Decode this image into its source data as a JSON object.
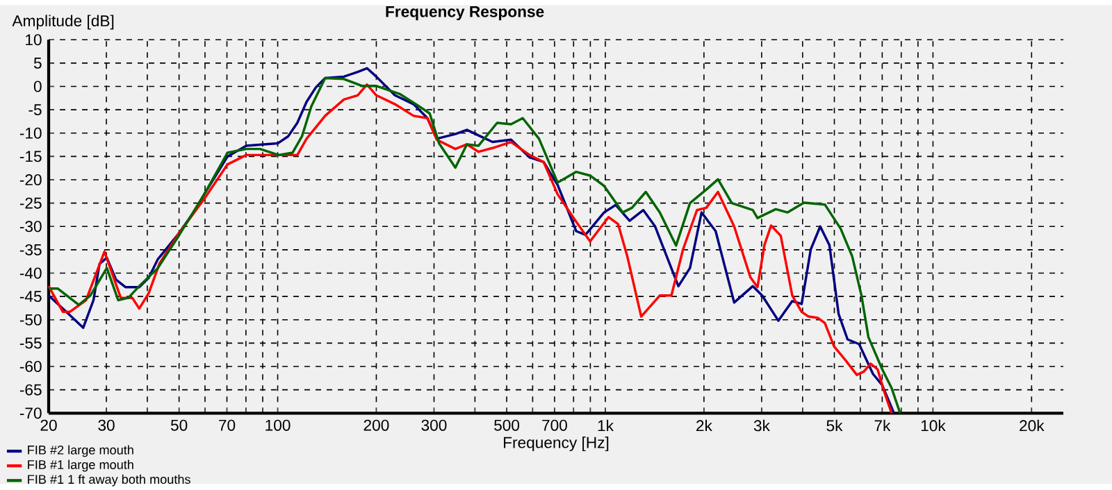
{
  "chart_data": {
    "type": "line",
    "title": "Frequency Response",
    "xlabel": "Frequency [Hz]",
    "ylabel": "Amplitude [dB]",
    "log": "x",
    "grid": true,
    "legend": "bottom left",
    "marker": "none",
    "line_style": "solid",
    "xlim": [
      20,
      25000
    ],
    "ylim": [
      -70,
      10
    ],
    "xticks": [
      20,
      30,
      {
        "value": 40,
        "label": null
      },
      50,
      {
        "value": 60,
        "label": null
      },
      70,
      {
        "value": 80,
        "label": null
      },
      {
        "value": 90,
        "label": null
      },
      100,
      200,
      300,
      {
        "value": 400,
        "label": null
      },
      500,
      {
        "value": 600,
        "label": null
      },
      700,
      {
        "value": 800,
        "label": null
      },
      {
        "value": 900,
        "label": null
      },
      {
        "value": 1000,
        "label": "1k"
      },
      {
        "value": 2000,
        "label": "2k"
      },
      {
        "value": 3000,
        "label": "3k"
      },
      {
        "value": 4000,
        "label": null
      },
      {
        "value": 5000,
        "label": "5k"
      },
      {
        "value": 6000,
        "label": null
      },
      {
        "value": 7000,
        "label": "7k"
      },
      {
        "value": 8000,
        "label": null
      },
      {
        "value": 9000,
        "label": null
      },
      {
        "value": 10000,
        "label": "10k"
      },
      {
        "value": 20000,
        "label": "20k"
      }
    ],
    "yticks": [
      -70,
      -65,
      -60,
      -55,
      -50,
      -45,
      -40,
      -35,
      -30,
      -25,
      -20,
      -15,
      -10,
      -5,
      0,
      5,
      10
    ],
    "series": [
      {
        "name": "FIB #2 large mouth",
        "color": "#000080",
        "x": [
          20,
          22.4,
          25.5,
          27.4,
          28.6,
          30.1,
          32.1,
          34.3,
          37.8,
          40.4,
          43.1,
          49.9,
          56,
          59.8,
          70.3,
          80.2,
          100,
          107.6,
          114.8,
          122.5,
          130.8,
          139.6,
          159.2,
          175.5,
          187.3,
          200,
          227.9,
          259.8,
          286.4,
          305.8,
          348.6,
          378,
          410.3,
          452.6,
          515.5,
          587.5,
          648.3,
          715,
          814.8,
          869.8,
          990.9,
          1076,
          1186,
          1306,
          1419,
          1671,
          1813,
          1967,
          2171,
          2473,
          2818,
          3010,
          3375,
          3720,
          3974,
          4237,
          4528,
          4830,
          5154,
          5487,
          5951,
          6560,
          7000,
          7600
        ],
        "values": [
          -44.8,
          -48,
          -51.7,
          -45.8,
          -38,
          -36.7,
          -41.4,
          -43,
          -43,
          -41,
          -37,
          -31.5,
          -26.5,
          -23,
          -15,
          -12.7,
          -12.2,
          -10.7,
          -7.8,
          -3.3,
          -0.2,
          1.8,
          2.1,
          3.1,
          3.9,
          2.1,
          -1.9,
          -3.8,
          -6.8,
          -11.2,
          -10.2,
          -9.3,
          -10.5,
          -11.9,
          -11.4,
          -15.2,
          -16.2,
          -21.1,
          -31,
          -31.8,
          -27,
          -25.4,
          -28.8,
          -26.5,
          -30,
          -42.8,
          -38.9,
          -27,
          -31,
          -46.3,
          -42.8,
          -44.8,
          -50.2,
          -46,
          -46.6,
          -34.9,
          -30,
          -34,
          -48.8,
          -54.2,
          -55.2,
          -61.6,
          -64,
          -70
        ]
      },
      {
        "name": "FIB #1 large mouth",
        "color": "#ff0000",
        "x": [
          20,
          22.1,
          23.2,
          26,
          29.6,
          33.2,
          36,
          37.8,
          40.4,
          43.6,
          49.9,
          59.8,
          70.3,
          80.2,
          100,
          114.8,
          122.5,
          139.6,
          159.2,
          175.5,
          187.3,
          200,
          227.9,
          259.8,
          286.4,
          305.8,
          348.6,
          378,
          410.3,
          452.6,
          515.5,
          587.5,
          648.3,
          715,
          814.8,
          898.6,
          1023,
          1094,
          1167,
          1287,
          1466,
          1591,
          1727,
          1904,
          2033,
          2207,
          2473,
          2772,
          2913,
          3059,
          3206,
          3431,
          3720,
          3974,
          4169,
          4454,
          4677,
          4990,
          5400,
          5855,
          6150,
          6454,
          6777,
          7115,
          7477
        ],
        "values": [
          -42.8,
          -48.3,
          -48.3,
          -45.8,
          -35.4,
          -45.3,
          -45.3,
          -47.6,
          -44.3,
          -37.9,
          -31.5,
          -24,
          -16.7,
          -14.7,
          -14.7,
          -14.7,
          -11.2,
          -6.3,
          -2.8,
          -1.9,
          0.4,
          -1.9,
          -3.8,
          -6.3,
          -6.8,
          -11.4,
          -13.4,
          -12.4,
          -14,
          -13.2,
          -11.9,
          -14.7,
          -16.2,
          -23.1,
          -29,
          -33.2,
          -28,
          -29.5,
          -36.4,
          -49.3,
          -44.8,
          -44.8,
          -34.9,
          -26.5,
          -26,
          -22.6,
          -30,
          -40.9,
          -43,
          -34,
          -29.8,
          -32,
          -44.8,
          -48.3,
          -49.3,
          -49.6,
          -50.7,
          -55.7,
          -58.6,
          -61.8,
          -61.1,
          -59.4,
          -60.6,
          -65.6,
          -70
        ]
      },
      {
        "name": "FIB #1 1 ft away both mouths",
        "color": "#006400",
        "x": [
          20,
          21.3,
          24.7,
          26.8,
          30.1,
          32.6,
          35,
          37.8,
          43.1,
          49.9,
          59.8,
          70.3,
          80.2,
          88.4,
          100.6,
          111,
          118.6,
          126.6,
          139.6,
          159.2,
          181.2,
          200,
          235.6,
          268.3,
          291.1,
          310.8,
          348.6,
          378,
          410.3,
          467.6,
          515.5,
          559.6,
          627.4,
          715,
          814.8,
          898.6,
          990.9,
          1129,
          1206,
          1329,
          1466,
          1644,
          1813,
          2033,
          2207,
          2433,
          2818,
          2913,
          3314,
          3601,
          4038,
          4677,
          5229,
          5669,
          6050,
          6352,
          7000,
          7477,
          7940
        ],
        "values": [
          -43.3,
          -43.3,
          -46.8,
          -44.8,
          -38.9,
          -45.8,
          -45.3,
          -42.8,
          -38.9,
          -32,
          -23,
          -14.2,
          -13.4,
          -13.4,
          -14.7,
          -14.2,
          -10.7,
          -4.3,
          1.8,
          1.6,
          0.1,
          0.1,
          -1.6,
          -4.1,
          -5.8,
          -12.2,
          -17.4,
          -12.4,
          -12.7,
          -7.8,
          -8.1,
          -6.8,
          -11.2,
          -20.6,
          -18.3,
          -19.1,
          -21.3,
          -27,
          -26,
          -22.6,
          -27,
          -34.1,
          -25,
          -22.1,
          -19.9,
          -25,
          -26.5,
          -28.2,
          -26.3,
          -27,
          -24.9,
          -25.3,
          -30.5,
          -36.4,
          -44.8,
          -53.7,
          -60.6,
          -64.6,
          -70
        ]
      }
    ]
  }
}
